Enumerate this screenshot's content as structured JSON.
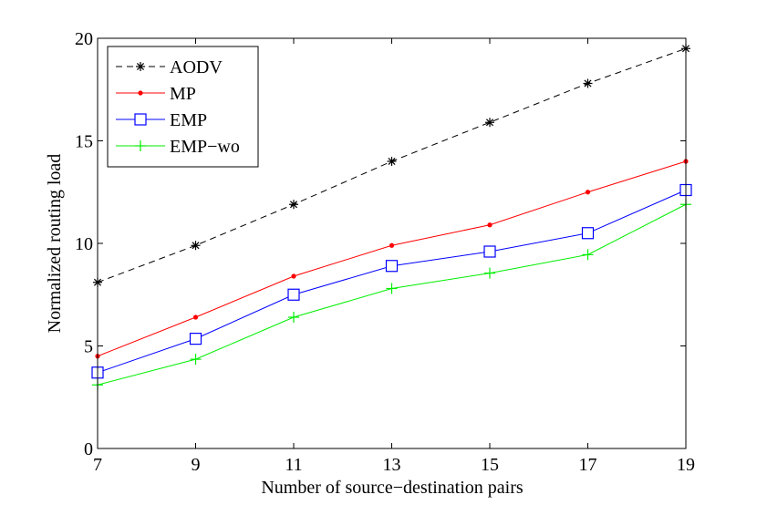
{
  "chart_data": {
    "type": "line",
    "title": "",
    "xlabel": "Number of source−destination pairs",
    "ylabel": "Normalized routing load",
    "x": [
      7,
      9,
      11,
      13,
      15,
      17,
      19
    ],
    "xticks": [
      7,
      9,
      11,
      13,
      15,
      17,
      19
    ],
    "yticks": [
      0,
      5,
      10,
      15,
      20
    ],
    "xlim": [
      7,
      19
    ],
    "ylim": [
      0,
      20
    ],
    "grid": false,
    "legend_position": "top-left",
    "series": [
      {
        "name": "AODV",
        "color": "#000000",
        "marker": "asterisk",
        "dash": "dashed",
        "values": [
          8.1,
          9.9,
          11.9,
          14.0,
          15.9,
          17.8,
          19.5
        ]
      },
      {
        "name": "MP",
        "color": "#ff0000",
        "marker": "dot",
        "dash": "solid",
        "values": [
          4.5,
          6.4,
          8.4,
          9.9,
          10.9,
          12.5,
          14.0
        ]
      },
      {
        "name": "EMP",
        "color": "#0000ff",
        "marker": "square",
        "dash": "solid",
        "values": [
          3.7,
          5.35,
          7.5,
          8.9,
          9.6,
          10.5,
          12.6
        ]
      },
      {
        "name": "EMP−wo",
        "color": "#00ee00",
        "marker": "plus",
        "dash": "solid",
        "values": [
          3.1,
          4.35,
          6.4,
          7.8,
          8.55,
          9.45,
          11.9
        ]
      }
    ]
  }
}
